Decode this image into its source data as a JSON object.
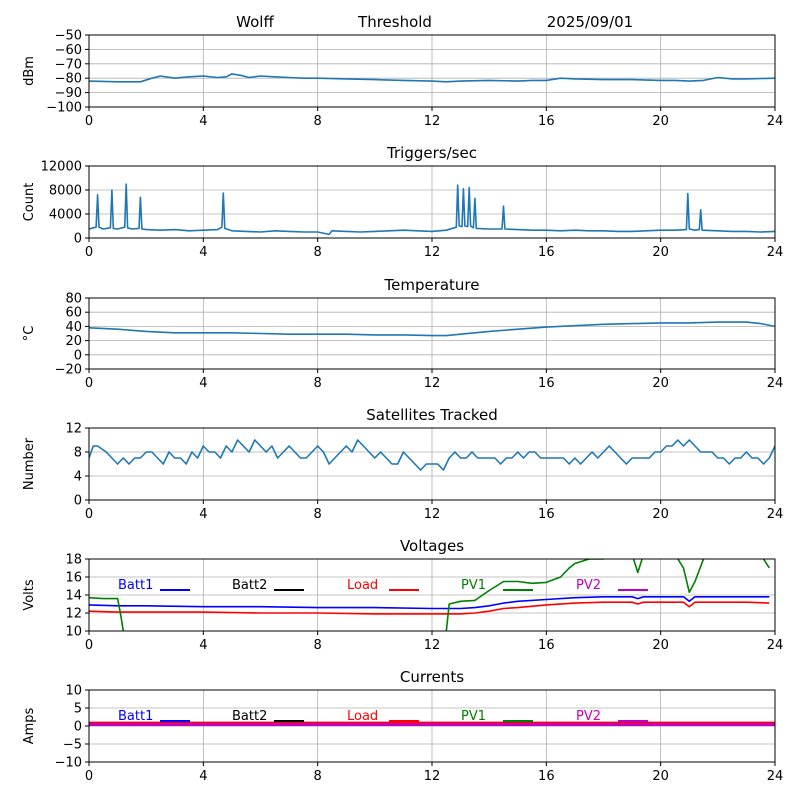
{
  "header": {
    "left": "Wolff",
    "middle": "Threshold",
    "right": "2025/09/01"
  },
  "chart_data": [
    {
      "id": "signal",
      "type": "line",
      "title": "",
      "ylabel": "dBm",
      "xlim": [
        0,
        24
      ],
      "ylim": [
        -100,
        -50
      ],
      "xticks": [
        0,
        4,
        8,
        12,
        16,
        20,
        24
      ],
      "yticks": [
        -100,
        -90,
        -80,
        -70,
        -60,
        -50
      ],
      "ytick_labels": [
        "−100",
        "−90",
        "−80",
        "−70",
        "−60",
        "−50"
      ],
      "grid": true,
      "series": [
        {
          "color": "#1f77b4",
          "x": [
            0,
            1,
            1.8,
            2.2,
            2.5,
            3,
            3.5,
            4,
            4.5,
            4.8,
            5,
            5.3,
            5.6,
            6,
            6.5,
            7,
            7.5,
            8,
            9,
            10,
            11,
            12,
            12.5,
            13,
            14,
            15,
            15.5,
            16,
            16.5,
            17,
            18,
            19,
            20,
            20.5,
            21,
            21.5,
            22,
            22.5,
            23,
            24
          ],
          "y": [
            -82,
            -82.5,
            -82.5,
            -80,
            -78.5,
            -80,
            -79,
            -78.5,
            -79.5,
            -79,
            -77,
            -78,
            -79.5,
            -78.5,
            -79,
            -79.5,
            -80,
            -80,
            -80.5,
            -81,
            -81.5,
            -82,
            -82.5,
            -82,
            -81.5,
            -82,
            -81.5,
            -81.5,
            -80,
            -80.5,
            -81,
            -81,
            -81.5,
            -81.5,
            -82,
            -81.5,
            -79.5,
            -80.5,
            -80.5,
            -80
          ]
        }
      ]
    },
    {
      "id": "triggers",
      "type": "line",
      "title": "Triggers/sec",
      "ylabel": "Count",
      "xlim": [
        0,
        24
      ],
      "ylim": [
        0,
        12000
      ],
      "xticks": [
        0,
        4,
        8,
        12,
        16,
        20,
        24
      ],
      "yticks": [
        0,
        4000,
        8000,
        12000
      ],
      "ytick_labels": [
        "0",
        "4000",
        "8000",
        "12000"
      ],
      "grid": true,
      "series": [
        {
          "color": "#1f77b4",
          "x": [
            0,
            0.25,
            0.3,
            0.35,
            0.5,
            0.75,
            0.8,
            0.85,
            1.0,
            1.25,
            1.3,
            1.35,
            1.5,
            1.75,
            1.8,
            1.85,
            2.0,
            2.5,
            3.0,
            3.5,
            4.0,
            4.5,
            4.65,
            4.7,
            4.75,
            5.0,
            5.5,
            6.0,
            6.5,
            7.0,
            7.5,
            8.0,
            8.4,
            8.5,
            9.0,
            9.5,
            10.0,
            10.5,
            11.0,
            11.5,
            12.0,
            12.5,
            12.85,
            12.9,
            12.95,
            13.05,
            13.1,
            13.15,
            13.25,
            13.3,
            13.35,
            13.45,
            13.5,
            13.55,
            14.0,
            14.45,
            14.5,
            14.55,
            15.0,
            15.5,
            16.0,
            16.5,
            17.0,
            17.5,
            18.0,
            18.5,
            19.0,
            19.5,
            20.0,
            20.5,
            20.9,
            20.95,
            21.0,
            21.2,
            21.35,
            21.4,
            21.45,
            22.0,
            22.5,
            23.0,
            23.5,
            24
          ],
          "y": [
            1500,
            1800,
            7200,
            1800,
            1500,
            1700,
            8000,
            1600,
            1500,
            1800,
            9000,
            1700,
            1500,
            1600,
            6800,
            1500,
            1400,
            1300,
            1400,
            1200,
            1300,
            1400,
            1800,
            7500,
            1600,
            1200,
            1100,
            1000,
            1200,
            1100,
            1000,
            1000,
            600,
            1200,
            1100,
            1000,
            1100,
            1200,
            1300,
            1200,
            1100,
            1300,
            1800,
            8800,
            2000,
            1900,
            8200,
            2000,
            1900,
            8400,
            2000,
            1700,
            6600,
            1600,
            1500,
            1500,
            5300,
            1500,
            1400,
            1300,
            1300,
            1200,
            1300,
            1200,
            1200,
            1100,
            1100,
            1200,
            1300,
            1300,
            1400,
            7400,
            1500,
            1300,
            1400,
            4700,
            1300,
            1200,
            1100,
            1100,
            1000,
            1100
          ]
        }
      ]
    },
    {
      "id": "temperature",
      "type": "line",
      "title": "Temperature",
      "ylabel": "°C",
      "xlim": [
        0,
        24
      ],
      "ylim": [
        -20,
        80
      ],
      "xticks": [
        0,
        4,
        8,
        12,
        16,
        20,
        24
      ],
      "yticks": [
        -20,
        0,
        20,
        40,
        60,
        80
      ],
      "ytick_labels": [
        "−20",
        "0",
        "20",
        "40",
        "60",
        "80"
      ],
      "grid": true,
      "series": [
        {
          "color": "#1f77b4",
          "x": [
            0,
            1,
            2,
            3,
            4,
            5,
            6,
            7,
            8,
            9,
            10,
            11,
            12,
            12.5,
            13,
            14,
            15,
            16,
            17,
            18,
            19,
            20,
            21,
            22,
            23,
            23.5,
            24
          ],
          "y": [
            38,
            36,
            33,
            31,
            31,
            31,
            30,
            29,
            29,
            29,
            28,
            28,
            27,
            27,
            29,
            33,
            36,
            39,
            41,
            43,
            44,
            45,
            45,
            46,
            46,
            44,
            40
          ]
        }
      ]
    },
    {
      "id": "satellites",
      "type": "line",
      "title": "Satellites Tracked",
      "ylabel": "Number",
      "xlim": [
        0,
        24
      ],
      "ylim": [
        0,
        12
      ],
      "xticks": [
        0,
        4,
        8,
        12,
        16,
        20,
        24
      ],
      "yticks": [
        0,
        4,
        8,
        12
      ],
      "ytick_labels": [
        "0",
        "4",
        "8",
        "12"
      ],
      "grid": true,
      "series": [
        {
          "color": "#1f77b4",
          "x": [
            0,
            0.15,
            0.3,
            0.6,
            0.8,
            1.0,
            1.2,
            1.4,
            1.6,
            1.8,
            2.0,
            2.2,
            2.4,
            2.6,
            2.8,
            3.0,
            3.2,
            3.4,
            3.6,
            3.8,
            4.0,
            4.2,
            4.4,
            4.6,
            4.8,
            5.0,
            5.2,
            5.4,
            5.6,
            5.8,
            6.0,
            6.2,
            6.4,
            6.6,
            6.8,
            7.0,
            7.2,
            7.4,
            7.6,
            7.8,
            8.0,
            8.2,
            8.4,
            8.6,
            8.8,
            9.0,
            9.2,
            9.4,
            9.6,
            9.8,
            10.0,
            10.2,
            10.4,
            10.6,
            10.8,
            11.0,
            11.2,
            11.4,
            11.6,
            11.8,
            12.0,
            12.2,
            12.4,
            12.6,
            12.8,
            13.0,
            13.2,
            13.4,
            13.6,
            13.8,
            14.0,
            14.2,
            14.4,
            14.6,
            14.8,
            15.0,
            15.2,
            15.4,
            15.6,
            15.8,
            16.0,
            16.2,
            16.4,
            16.6,
            16.8,
            17.0,
            17.2,
            17.4,
            17.6,
            17.8,
            18.0,
            18.2,
            18.4,
            18.6,
            18.8,
            19.0,
            19.2,
            19.4,
            19.6,
            19.8,
            20.0,
            20.2,
            20.4,
            20.6,
            20.8,
            21.0,
            21.2,
            21.4,
            21.6,
            21.8,
            22.0,
            22.2,
            22.4,
            22.6,
            22.8,
            23.0,
            23.2,
            23.4,
            23.6,
            23.8,
            24.0
          ],
          "y": [
            7,
            9,
            9,
            8,
            7,
            6,
            7,
            6,
            7,
            7,
            8,
            8,
            7,
            6,
            8,
            7,
            7,
            6,
            8,
            7,
            9,
            8,
            8,
            7,
            9,
            8,
            10,
            9,
            8,
            10,
            9,
            8,
            9,
            7,
            8,
            9,
            8,
            7,
            7,
            8,
            9,
            8,
            6,
            7,
            8,
            9,
            8,
            10,
            9,
            8,
            7,
            8,
            7,
            6,
            6,
            8,
            7,
            6,
            5,
            6,
            6,
            6,
            5,
            7,
            8,
            7,
            7,
            8,
            7,
            7,
            7,
            7,
            6,
            7,
            7,
            8,
            7,
            8,
            8,
            7,
            7,
            7,
            7,
            7,
            6,
            7,
            6,
            7,
            8,
            7,
            8,
            9,
            8,
            7,
            6,
            7,
            7,
            7,
            7,
            8,
            8,
            9,
            9,
            10,
            9,
            10,
            9,
            8,
            8,
            8,
            7,
            7,
            6,
            7,
            7,
            8,
            7,
            7,
            6,
            7,
            9
          ]
        }
      ]
    },
    {
      "id": "voltages",
      "type": "line",
      "title": "Voltages",
      "ylabel": "Volts",
      "xlim": [
        0,
        24
      ],
      "ylim": [
        10,
        18
      ],
      "xticks": [
        0,
        4,
        8,
        12,
        16,
        20,
        24
      ],
      "yticks": [
        10,
        12,
        14,
        16,
        18
      ],
      "ytick_labels": [
        "10",
        "12",
        "14",
        "16",
        "18"
      ],
      "grid": true,
      "legend": [
        {
          "label": "Batt1",
          "color": "#0000ff"
        },
        {
          "label": "Batt2",
          "color": "#000000"
        },
        {
          "label": "Load",
          "color": "#ff0000"
        },
        {
          "label": "PV1",
          "color": "#008000"
        },
        {
          "label": "PV2",
          "color": "#c000c0"
        }
      ],
      "series": [
        {
          "name": "Batt1",
          "color": "#0000ff",
          "x": [
            0,
            1,
            2,
            4,
            6,
            8,
            10,
            12,
            13,
            13.5,
            14,
            14.5,
            15,
            16,
            17,
            18,
            19,
            19.2,
            19.4,
            20,
            20.8,
            21,
            21.2,
            22,
            23,
            23.8
          ],
          "y": [
            12.9,
            12.8,
            12.8,
            12.7,
            12.7,
            12.6,
            12.6,
            12.5,
            12.5,
            12.6,
            12.8,
            13.1,
            13.3,
            13.5,
            13.7,
            13.8,
            13.8,
            13.6,
            13.8,
            13.8,
            13.8,
            13.3,
            13.8,
            13.8,
            13.8,
            13.8
          ]
        },
        {
          "name": "Load",
          "color": "#ff0000",
          "x": [
            0,
            1,
            2,
            4,
            6,
            8,
            10,
            12,
            13,
            13.5,
            14,
            14.5,
            15,
            16,
            17,
            18,
            19,
            19.2,
            19.4,
            20,
            20.8,
            21,
            21.2,
            22,
            23,
            23.8
          ],
          "y": [
            12.2,
            12.1,
            12.1,
            12.1,
            12.0,
            12.0,
            11.9,
            11.9,
            11.9,
            12.0,
            12.2,
            12.5,
            12.6,
            12.9,
            13.1,
            13.2,
            13.2,
            13.0,
            13.2,
            13.2,
            13.2,
            12.7,
            13.2,
            13.2,
            13.2,
            13.1
          ]
        },
        {
          "name": "PV1",
          "color": "#008000",
          "x": [
            0,
            0.5,
            1.0,
            1.1,
            1.2,
            1.3,
            12.4,
            12.5,
            12.6,
            13.0,
            13.5,
            14.0,
            14.5,
            15.0,
            15.5,
            16.0,
            16.5,
            16.8,
            17.0,
            17.5,
            18.0,
            18.2,
            19.0,
            19.2,
            19.35,
            19.5,
            20.5,
            20.8,
            21.0,
            21.2,
            21.5,
            22.0,
            23.5,
            23.8
          ],
          "y": [
            13.7,
            13.6,
            13.6,
            12.0,
            10.0,
            8.0,
            8.0,
            10.0,
            13.0,
            13.3,
            13.4,
            14.5,
            15.5,
            15.5,
            15.3,
            15.4,
            16.0,
            17.0,
            17.5,
            18.0,
            18.0,
            18.5,
            18.5,
            16.5,
            18.0,
            18.5,
            18.5,
            17.0,
            14.3,
            15.5,
            18.0,
            18.5,
            18.5,
            17.0
          ]
        }
      ]
    },
    {
      "id": "currents",
      "type": "line",
      "title": "Currents",
      "ylabel": "Amps",
      "xlim": [
        0,
        24
      ],
      "ylim": [
        -10,
        10
      ],
      "xticks": [
        0,
        4,
        8,
        12,
        16,
        20,
        24
      ],
      "yticks": [
        -10,
        -5,
        0,
        5,
        10
      ],
      "ytick_labels": [
        "−10",
        "−5",
        "0",
        "5",
        "10"
      ],
      "grid": true,
      "legend": [
        {
          "label": "Batt1",
          "color": "#0000ff"
        },
        {
          "label": "Batt2",
          "color": "#000000"
        },
        {
          "label": "Load",
          "color": "#ff0000"
        },
        {
          "label": "PV1",
          "color": "#008000"
        },
        {
          "label": "PV2",
          "color": "#c000c0"
        }
      ],
      "series": [
        {
          "name": "Load",
          "color": "#ff0000",
          "x": [
            0,
            24
          ],
          "y": [
            0.8,
            0.8
          ]
        },
        {
          "name": "PV2",
          "color": "#c000c0",
          "x": [
            0,
            24
          ],
          "y": [
            0.4,
            0.4
          ]
        }
      ]
    }
  ]
}
